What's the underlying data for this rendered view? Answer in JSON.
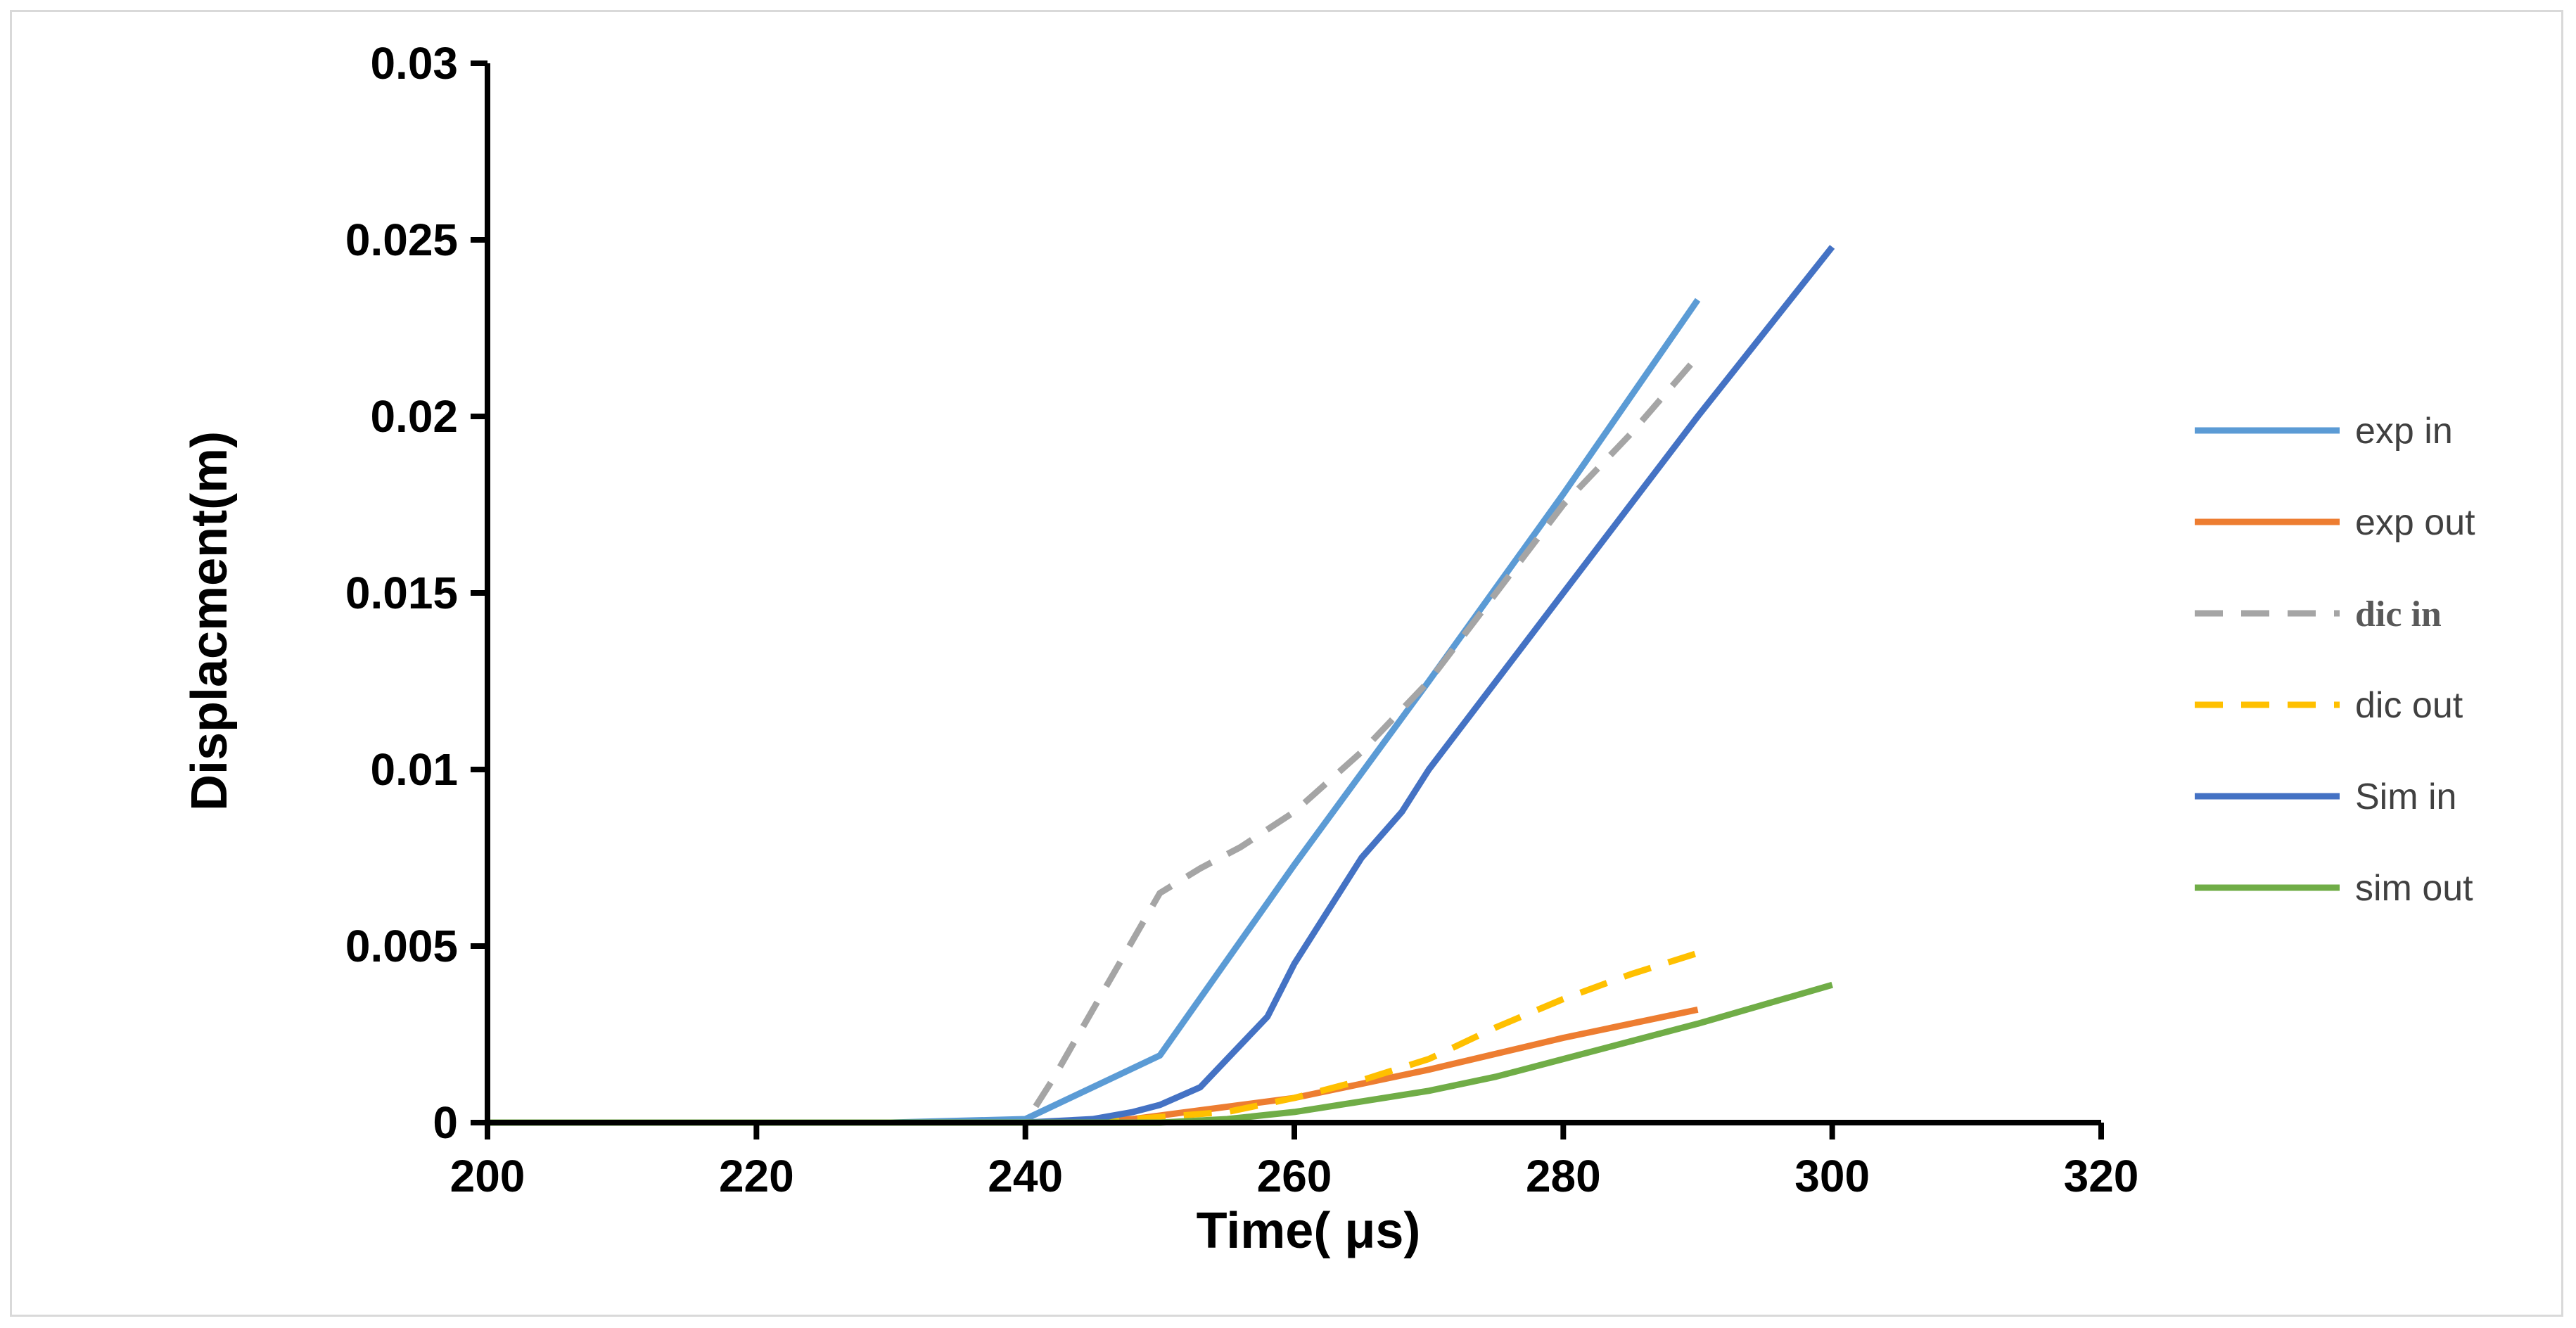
{
  "chart_data": {
    "type": "line",
    "title": "",
    "xlabel": "Time( μs)",
    "ylabel": "Displacment(m)",
    "xlim": [
      200,
      320
    ],
    "ylim": [
      0,
      0.03
    ],
    "x_ticks": [
      "200",
      "220",
      "240",
      "260",
      "280",
      "300",
      "320"
    ],
    "y_ticks": [
      "0",
      "0.005",
      "0.01",
      "0.015",
      "0.02",
      "0.025",
      "0.03"
    ],
    "grid": false,
    "legend_position": "right",
    "series": [
      {
        "name": "exp in",
        "color": "#5b9bd5",
        "dash": "solid",
        "points": [
          [
            200,
            0
          ],
          [
            220,
            0
          ],
          [
            230,
            0
          ],
          [
            240,
            0.0001
          ],
          [
            250,
            0.0019
          ],
          [
            260,
            0.0073
          ],
          [
            270,
            0.0125
          ],
          [
            280,
            0.0178
          ],
          [
            290,
            0.0233
          ]
        ]
      },
      {
        "name": "exp out",
        "color": "#ed7d31",
        "dash": "solid",
        "points": [
          [
            200,
            0
          ],
          [
            220,
            0
          ],
          [
            240,
            0
          ],
          [
            248,
            0.0001
          ],
          [
            250,
            0.0002
          ],
          [
            260,
            0.0007
          ],
          [
            270,
            0.0015
          ],
          [
            280,
            0.0024
          ],
          [
            290,
            0.0032
          ]
        ]
      },
      {
        "name": "dic in",
        "color": "#a5a5a5",
        "dash": "dashed",
        "points": [
          [
            200,
            0
          ],
          [
            220,
            0
          ],
          [
            240,
            0
          ],
          [
            242,
            0.0012
          ],
          [
            250,
            0.0065
          ],
          [
            253,
            0.0072
          ],
          [
            256,
            0.0078
          ],
          [
            260,
            0.0088
          ],
          [
            265,
            0.0105
          ],
          [
            270,
            0.0125
          ],
          [
            275,
            0.015
          ],
          [
            280,
            0.0175
          ],
          [
            285,
            0.0195
          ],
          [
            290,
            0.0217
          ]
        ]
      },
      {
        "name": "dic out",
        "color": "#ffc000",
        "dash": "dashed",
        "points": [
          [
            200,
            0
          ],
          [
            220,
            0
          ],
          [
            240,
            0
          ],
          [
            248,
            0.0001
          ],
          [
            255,
            0.0003
          ],
          [
            260,
            0.0007
          ],
          [
            265,
            0.0012
          ],
          [
            270,
            0.0018
          ],
          [
            275,
            0.0027
          ],
          [
            280,
            0.0035
          ],
          [
            285,
            0.0042
          ],
          [
            290,
            0.0048
          ]
        ]
      },
      {
        "name": "Sim in",
        "color": "#4472c4",
        "dash": "solid",
        "points": [
          [
            200,
            0
          ],
          [
            220,
            0
          ],
          [
            240,
            0
          ],
          [
            245,
            0.0001
          ],
          [
            248,
            0.0003
          ],
          [
            250,
            0.0005
          ],
          [
            253,
            0.001
          ],
          [
            255,
            0.0018
          ],
          [
            258,
            0.003
          ],
          [
            260,
            0.0045
          ],
          [
            265,
            0.0075
          ],
          [
            268,
            0.0088
          ],
          [
            270,
            0.01
          ],
          [
            275,
            0.0125
          ],
          [
            280,
            0.015
          ],
          [
            285,
            0.0175
          ],
          [
            290,
            0.02
          ],
          [
            300,
            0.0248
          ]
        ]
      },
      {
        "name": "sim out",
        "color": "#70ad47",
        "dash": "solid",
        "points": [
          [
            200,
            0
          ],
          [
            220,
            0
          ],
          [
            240,
            0
          ],
          [
            250,
            0
          ],
          [
            255,
            0.0001
          ],
          [
            260,
            0.0003
          ],
          [
            265,
            0.0006
          ],
          [
            270,
            0.0009
          ],
          [
            275,
            0.0013
          ],
          [
            280,
            0.0018
          ],
          [
            285,
            0.0023
          ],
          [
            290,
            0.0028
          ],
          [
            300,
            0.0039
          ]
        ]
      }
    ]
  }
}
